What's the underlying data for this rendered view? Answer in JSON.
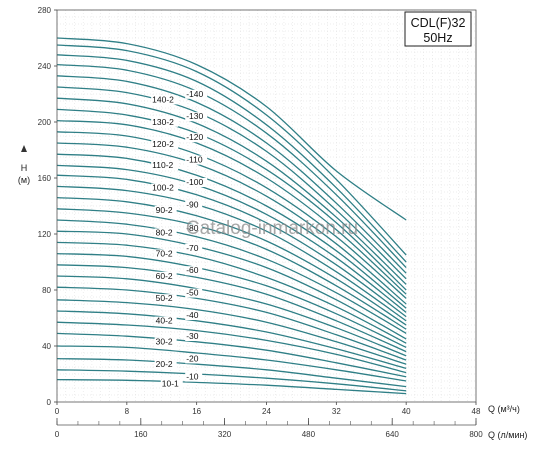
{
  "chart_data": {
    "type": "line",
    "title": "CDL(F)32",
    "subtitle": "50Hz",
    "xlabel": "Q (м³/ч)",
    "xlabel_secondary": "Q (л/мин)",
    "ylabel": "H",
    "ylabel_unit": "(м)",
    "xlim": [
      0,
      48
    ],
    "ylim": [
      0,
      280
    ],
    "xlim_secondary": [
      0,
      800
    ],
    "x_ticks": [
      "0",
      "8",
      "16",
      "24",
      "32",
      "40",
      "48"
    ],
    "x_ticks_secondary": [
      "0",
      "160",
      "320",
      "480",
      "640",
      "800"
    ],
    "y_ticks": [
      "0",
      "40",
      "80",
      "120",
      "160",
      "200",
      "240",
      "280"
    ],
    "grid": true,
    "watermark": "Catalog-inmarkon.ru",
    "curve_color": "#2f7f86",
    "x": [
      0,
      8,
      16,
      24,
      32,
      40
    ],
    "series": [
      {
        "y": [
          16,
          15.5,
          14,
          12,
          9,
          6
        ]
      },
      {
        "y": [
          23,
          22,
          20,
          17,
          13,
          8
        ]
      },
      {
        "y": [
          31,
          30,
          27,
          23,
          17,
          11
        ]
      },
      {
        "y": [
          40,
          39,
          35,
          30,
          23,
          15
        ]
      },
      {
        "y": [
          49,
          47,
          43,
          37,
          28,
          18
        ]
      },
      {
        "y": [
          57,
          55,
          51,
          44,
          34,
          21
        ]
      },
      {
        "y": [
          65,
          63,
          58,
          50,
          38,
          24
        ]
      },
      {
        "y": [
          73,
          71,
          66,
          57,
          43,
          27
        ]
      },
      {
        "y": [
          82,
          80,
          74,
          64,
          48,
          30
        ]
      },
      {
        "y": [
          90,
          88,
          81,
          70,
          53,
          33
        ]
      },
      {
        "y": [
          98,
          96,
          89,
          77,
          58,
          36
        ]
      },
      {
        "y": [
          106,
          104,
          96,
          83,
          63,
          39
        ]
      },
      {
        "y": [
          114,
          112,
          104,
          89,
          68,
          42
        ]
      },
      {
        "y": [
          122,
          120,
          111,
          96,
          73,
          45
        ]
      },
      {
        "y": [
          130,
          127,
          118,
          102,
          78,
          49
        ]
      },
      {
        "y": [
          138,
          135,
          126,
          109,
          83,
          52
        ]
      },
      {
        "y": [
          146,
          143,
          133,
          115,
          88,
          55
        ]
      },
      {
        "y": [
          154,
          151,
          141,
          122,
          93,
          58
        ]
      },
      {
        "y": [
          162,
          159,
          148,
          128,
          98,
          61
        ]
      },
      {
        "y": [
          169,
          166,
          155,
          134,
          103,
          64
        ]
      },
      {
        "y": [
          177,
          174,
          162,
          140,
          108,
          67
        ]
      },
      {
        "y": [
          185,
          182,
          170,
          147,
          113,
          70
        ]
      },
      {
        "y": [
          193,
          190,
          177,
          153,
          118,
          74
        ]
      },
      {
        "y": [
          201,
          198,
          185,
          160,
          123,
          77
        ]
      },
      {
        "y": [
          209,
          205,
          192,
          166,
          128,
          80
        ]
      },
      {
        "y": [
          217,
          213,
          199,
          172,
          132,
          84
        ]
      },
      {
        "y": [
          225,
          221,
          207,
          179,
          137,
          88
        ]
      },
      {
        "y": [
          233,
          229,
          214,
          185,
          142,
          92
        ]
      },
      {
        "y": [
          241,
          237,
          222,
          192,
          148,
          96
        ]
      },
      {
        "y": [
          248,
          244,
          229,
          198,
          153,
          100
        ]
      },
      {
        "y": [
          255,
          251,
          236,
          205,
          159,
          105
        ]
      },
      {
        "y": [
          260,
          256,
          241,
          211,
          165,
          130
        ]
      }
    ],
    "curve_labels": [
      {
        "text": "10-1",
        "x": 12,
        "y": 11
      },
      {
        "text": "-10",
        "x": 14.8,
        "y": 16
      },
      {
        "text": "20-2",
        "x": 11.3,
        "y": 25
      },
      {
        "text": "-20",
        "x": 14.8,
        "y": 29
      },
      {
        "text": "30-2",
        "x": 11.3,
        "y": 41
      },
      {
        "text": "-30",
        "x": 14.8,
        "y": 45
      },
      {
        "text": "40-2",
        "x": 11.3,
        "y": 56
      },
      {
        "text": "-40",
        "x": 14.8,
        "y": 60
      },
      {
        "text": "50-2",
        "x": 11.3,
        "y": 72
      },
      {
        "text": "-50",
        "x": 14.8,
        "y": 76
      },
      {
        "text": "60-2",
        "x": 11.3,
        "y": 88
      },
      {
        "text": "-60",
        "x": 14.8,
        "y": 92
      },
      {
        "text": "70-2",
        "x": 11.3,
        "y": 104
      },
      {
        "text": "-70",
        "x": 14.8,
        "y": 108
      },
      {
        "text": "80-2",
        "x": 11.3,
        "y": 119
      },
      {
        "text": "-80",
        "x": 14.8,
        "y": 122
      },
      {
        "text": "90-2",
        "x": 11.3,
        "y": 135
      },
      {
        "text": "-90",
        "x": 14.8,
        "y": 139
      },
      {
        "text": "100-2",
        "x": 10.9,
        "y": 151
      },
      {
        "text": "-100",
        "x": 14.8,
        "y": 155
      },
      {
        "text": "110-2",
        "x": 10.9,
        "y": 167
      },
      {
        "text": "-110",
        "x": 14.8,
        "y": 171
      },
      {
        "text": "120-2",
        "x": 10.9,
        "y": 182
      },
      {
        "text": "-120",
        "x": 14.8,
        "y": 187
      },
      {
        "text": "130-2",
        "x": 10.9,
        "y": 198
      },
      {
        "text": "-130",
        "x": 14.8,
        "y": 202
      },
      {
        "text": "140-2",
        "x": 10.9,
        "y": 214
      },
      {
        "text": "-140",
        "x": 14.8,
        "y": 218
      }
    ]
  }
}
